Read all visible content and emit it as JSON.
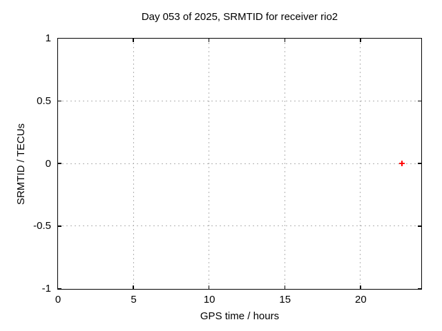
{
  "title": "Day 053 of 2025, SRMTID for receiver rio2",
  "chart_data": {
    "type": "scatter",
    "title": "Day 053 of 2025, SRMTID for receiver rio2",
    "xlabel": "GPS time / hours",
    "ylabel": "SRMTID / TECUs",
    "xlim": [
      0,
      24
    ],
    "ylim": [
      -1,
      1
    ],
    "xticks": [
      0,
      5,
      10,
      15,
      20
    ],
    "xtick_labels": [
      "0",
      "5",
      "10",
      "15",
      "20"
    ],
    "yticks": [
      -1,
      -0.5,
      0,
      0.5,
      1
    ],
    "ytick_labels": [
      "-1",
      "-0.5",
      "0",
      "0.5",
      "1"
    ],
    "grid": true,
    "grid_style": "dashed",
    "legend": false,
    "series": [
      {
        "name": "SRMTID",
        "marker": "plus",
        "color": "#ff0000",
        "points": [
          [
            22.74,
            0.0
          ]
        ]
      }
    ],
    "colors": {
      "background": "#ffffff",
      "axis": "#000000",
      "grid": "#b0b0b0",
      "text": "#000000"
    }
  }
}
